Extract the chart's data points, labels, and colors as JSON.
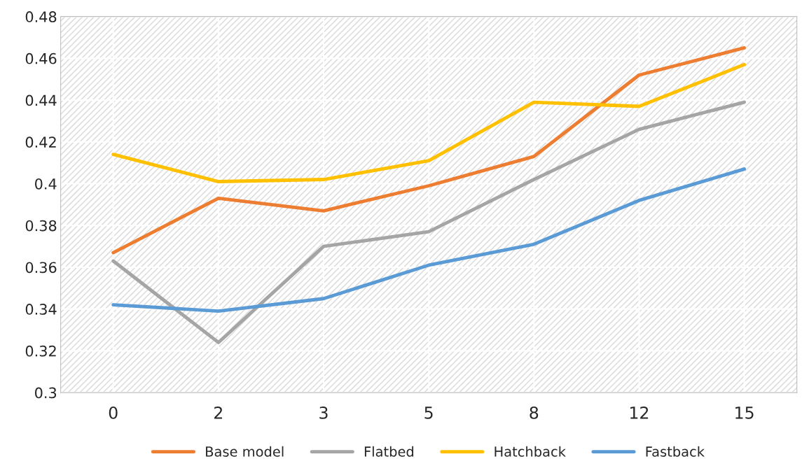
{
  "chart_data": {
    "type": "line",
    "categories": [
      "0",
      "2",
      "3",
      "5",
      "8",
      "12",
      "15"
    ],
    "series": [
      {
        "name": "Base model",
        "color": "#ed7d31",
        "values": [
          0.367,
          0.393,
          0.387,
          0.399,
          0.413,
          0.452,
          0.465
        ]
      },
      {
        "name": "Flatbed",
        "color": "#a5a5a5",
        "values": [
          0.363,
          0.324,
          0.37,
          0.377,
          0.402,
          0.426,
          0.439
        ]
      },
      {
        "name": "Hatchback",
        "color": "#ffc000",
        "values": [
          0.414,
          0.401,
          0.402,
          0.411,
          0.439,
          0.437,
          0.457
        ]
      },
      {
        "name": "Fastback",
        "color": "#5b9bd5",
        "values": [
          0.342,
          0.339,
          0.345,
          0.361,
          0.371,
          0.392,
          0.407
        ]
      }
    ],
    "ylim": [
      0.3,
      0.48
    ],
    "yticks": [
      {
        "value": 0.3,
        "label": "0.3"
      },
      {
        "value": 0.32,
        "label": "0.32"
      },
      {
        "value": 0.34,
        "label": "0.34"
      },
      {
        "value": 0.36,
        "label": "0.36"
      },
      {
        "value": 0.38,
        "label": "0.38"
      },
      {
        "value": 0.4,
        "label": "0.4"
      },
      {
        "value": 0.42,
        "label": "0.42"
      },
      {
        "value": 0.44,
        "label": "0.44"
      },
      {
        "value": 0.46,
        "label": "0.46"
      },
      {
        "value": 0.48,
        "label": "0.48"
      }
    ],
    "grid": true,
    "legend": "bottom",
    "marker": "none",
    "line_style": "solid"
  }
}
